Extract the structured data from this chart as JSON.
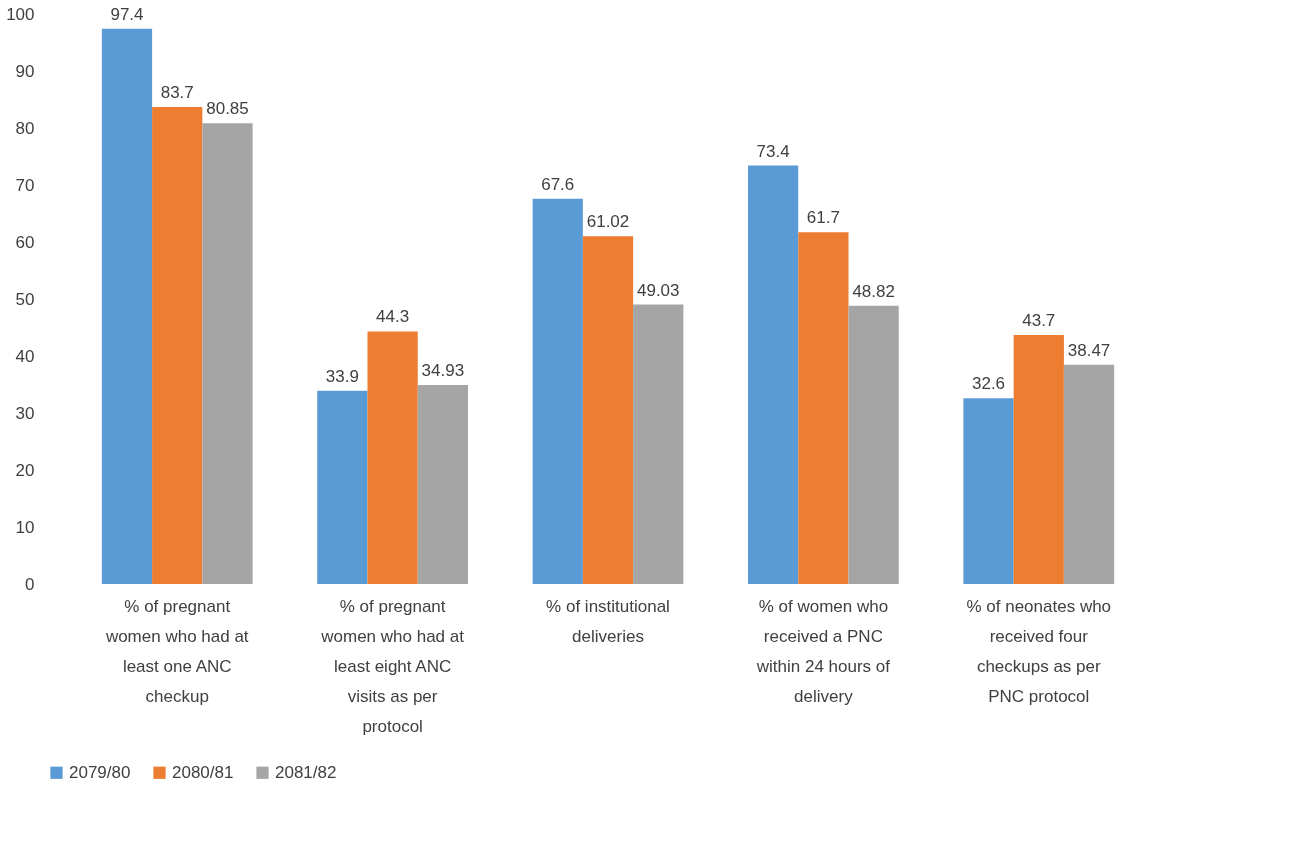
{
  "chart_data": {
    "type": "bar",
    "categories": [
      "% of pregnant women who had at least one ANC checkup",
      "% of pregnant women who had at least eight ANC visits as per protocol",
      "% of institutional deliveries",
      "% of women who received a PNC within 24 hours of delivery",
      "% of neonates who received four checkups as per PNC protocol"
    ],
    "series": [
      {
        "name": "2079/80",
        "color": "#5b9bd5",
        "values": [
          97.4,
          33.9,
          67.6,
          73.4,
          32.6
        ]
      },
      {
        "name": "2080/81",
        "color": "#ed7d31",
        "values": [
          83.7,
          44.3,
          61.02,
          61.7,
          43.7
        ]
      },
      {
        "name": "2081/82",
        "color": "#a5a5a5",
        "values": [
          80.85,
          34.93,
          49.03,
          48.82,
          38.47
        ]
      }
    ],
    "ylim": [
      0,
      100
    ],
    "yticks": [
      0,
      10,
      20,
      30,
      40,
      50,
      60,
      70,
      80,
      90,
      100
    ],
    "grid": false,
    "legend": "bottom",
    "data_labels": true
  }
}
